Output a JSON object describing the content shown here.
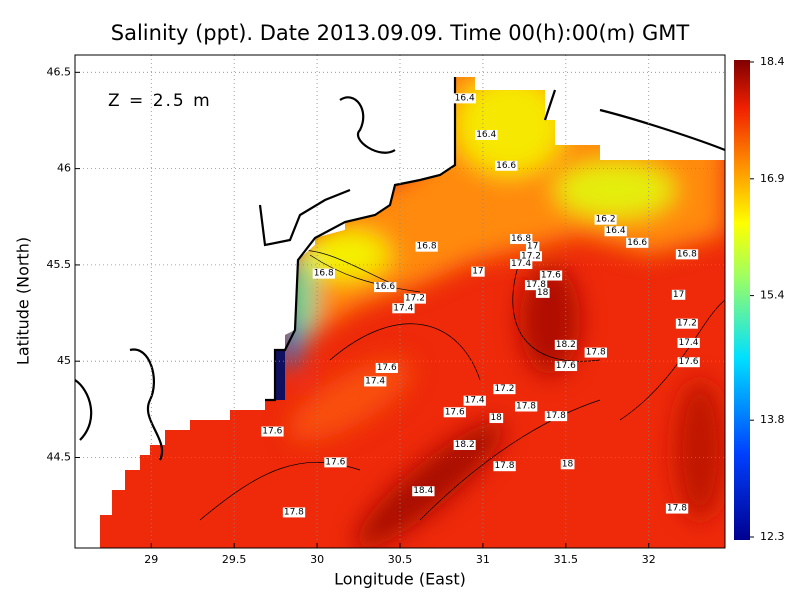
{
  "title": "Salinity (ppt). Date 2013.09.09. Time 00(h):00(m) GMT",
  "depth_label": "Z = 2.5 m",
  "map": {
    "xlabel": "Longitude (East)",
    "ylabel": "Latitude (North)",
    "xlim": [
      28.54,
      32.46
    ],
    "ylim": [
      44.03,
      46.59
    ],
    "xticks": [
      29,
      29.5,
      30,
      30.5,
      31,
      31.5,
      32
    ],
    "yticks": [
      44.5,
      45,
      45.5,
      46,
      46.5
    ],
    "contour_labels": [
      {
        "value": 16.4,
        "lon": 30.89,
        "lat": 46.37
      },
      {
        "value": 16.4,
        "lon": 31.02,
        "lat": 46.18
      },
      {
        "value": 16.6,
        "lon": 31.14,
        "lat": 46.02
      },
      {
        "value": 16.2,
        "lon": 31.74,
        "lat": 45.74
      },
      {
        "value": 16.4,
        "lon": 31.8,
        "lat": 45.68
      },
      {
        "value": 16.6,
        "lon": 31.93,
        "lat": 45.62
      },
      {
        "value": 16.8,
        "lon": 32.23,
        "lat": 45.56
      },
      {
        "value": 16.8,
        "lon": 30.66,
        "lat": 45.6
      },
      {
        "value": 16.8,
        "lon": 31.23,
        "lat": 45.64
      },
      {
        "value": 17,
        "lon": 31.3,
        "lat": 45.6
      },
      {
        "value": 17.2,
        "lon": 31.29,
        "lat": 45.55
      },
      {
        "value": 17.4,
        "lon": 31.23,
        "lat": 45.51
      },
      {
        "value": 17.6,
        "lon": 31.41,
        "lat": 45.45
      },
      {
        "value": 17.8,
        "lon": 31.32,
        "lat": 45.4
      },
      {
        "value": 18,
        "lon": 31.36,
        "lat": 45.36
      },
      {
        "value": 17,
        "lon": 30.97,
        "lat": 45.47
      },
      {
        "value": 17,
        "lon": 32.18,
        "lat": 45.35
      },
      {
        "value": 16.8,
        "lon": 30.04,
        "lat": 45.46
      },
      {
        "value": 16.6,
        "lon": 30.41,
        "lat": 45.39
      },
      {
        "value": 17.2,
        "lon": 30.59,
        "lat": 45.33
      },
      {
        "value": 17.4,
        "lon": 30.52,
        "lat": 45.28
      },
      {
        "value": 17.2,
        "lon": 32.23,
        "lat": 45.2
      },
      {
        "value": 17.4,
        "lon": 32.24,
        "lat": 45.1
      },
      {
        "value": 18.2,
        "lon": 31.5,
        "lat": 45.09
      },
      {
        "value": 17.8,
        "lon": 31.68,
        "lat": 45.05
      },
      {
        "value": 17.6,
        "lon": 31.5,
        "lat": 44.98
      },
      {
        "value": 17.6,
        "lon": 32.24,
        "lat": 45.0
      },
      {
        "value": 17.6,
        "lon": 30.42,
        "lat": 44.97
      },
      {
        "value": 17.4,
        "lon": 30.35,
        "lat": 44.9
      },
      {
        "value": 17.2,
        "lon": 31.13,
        "lat": 44.86
      },
      {
        "value": 17.4,
        "lon": 30.95,
        "lat": 44.8
      },
      {
        "value": 17.8,
        "lon": 31.26,
        "lat": 44.77
      },
      {
        "value": 17.6,
        "lon": 30.83,
        "lat": 44.74
      },
      {
        "value": 18,
        "lon": 31.08,
        "lat": 44.71
      },
      {
        "value": 17.8,
        "lon": 31.44,
        "lat": 44.72
      },
      {
        "value": 17.6,
        "lon": 29.73,
        "lat": 44.64
      },
      {
        "value": 18.2,
        "lon": 30.89,
        "lat": 44.57
      },
      {
        "value": 17.6,
        "lon": 30.11,
        "lat": 44.48
      },
      {
        "value": 17.8,
        "lon": 31.13,
        "lat": 44.46
      },
      {
        "value": 18,
        "lon": 31.51,
        "lat": 44.47
      },
      {
        "value": 18.4,
        "lon": 30.64,
        "lat": 44.33
      },
      {
        "value": 17.8,
        "lon": 29.86,
        "lat": 44.22
      },
      {
        "value": 17.8,
        "lon": 32.17,
        "lat": 44.24
      }
    ]
  },
  "colorbar": {
    "lim": [
      12.3,
      18.4
    ],
    "ticks": [
      12.3,
      13.8,
      15.4,
      16.9,
      18.4
    ]
  }
}
